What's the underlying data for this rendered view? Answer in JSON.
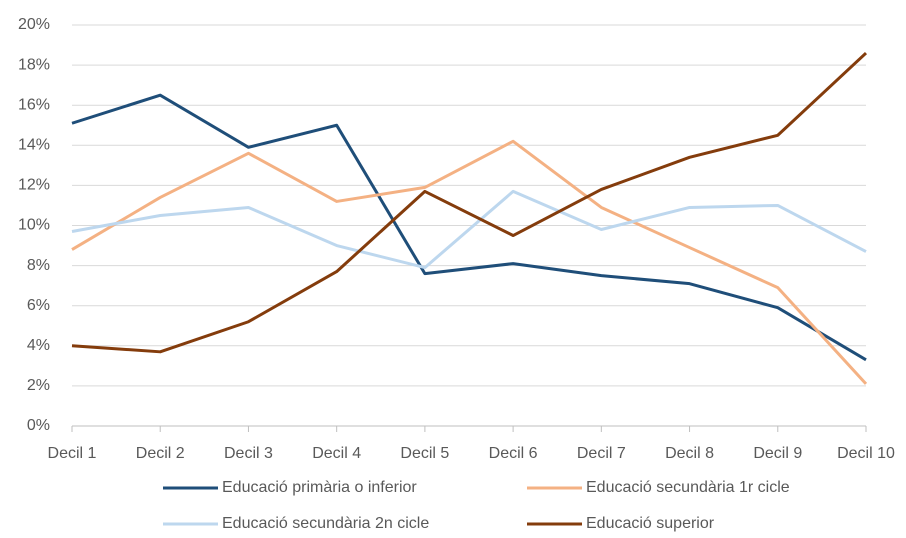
{
  "chart_data": {
    "type": "line",
    "categories": [
      "Decil 1",
      "Decil 2",
      "Decil 3",
      "Decil 4",
      "Decil 5",
      "Decil 6",
      "Decil 7",
      "Decil 8",
      "Decil 9",
      "Decil 10"
    ],
    "series": [
      {
        "name": "Educació primària o inferior",
        "color": "#1f4e79",
        "values": [
          15.1,
          16.5,
          13.9,
          15.0,
          7.6,
          8.1,
          7.5,
          7.1,
          5.9,
          3.3
        ]
      },
      {
        "name": "Educació secundària 1r cicle",
        "color": "#f4b183",
        "values": [
          8.8,
          11.4,
          13.6,
          11.2,
          11.9,
          14.2,
          10.9,
          8.9,
          6.9,
          2.1
        ]
      },
      {
        "name": "Educació secundària 2n cicle",
        "color": "#bdd7ee",
        "values": [
          9.7,
          10.5,
          10.9,
          9.0,
          7.9,
          11.7,
          9.8,
          10.9,
          11.0,
          8.7
        ]
      },
      {
        "name": "Educació superior",
        "color": "#843c0c",
        "values": [
          4.0,
          3.7,
          5.2,
          7.7,
          11.7,
          9.5,
          11.8,
          13.4,
          14.5,
          18.6
        ]
      }
    ],
    "ylim": [
      0,
      20
    ],
    "yticks": [
      {
        "value": 0,
        "label": "0%"
      },
      {
        "value": 2,
        "label": "2%"
      },
      {
        "value": 4,
        "label": "4%"
      },
      {
        "value": 6,
        "label": "6%"
      },
      {
        "value": 8,
        "label": "8%"
      },
      {
        "value": 10,
        "label": "10%"
      },
      {
        "value": 12,
        "label": "12%"
      },
      {
        "value": 14,
        "label": "14%"
      },
      {
        "value": 16,
        "label": "16%"
      },
      {
        "value": 18,
        "label": "18%"
      },
      {
        "value": 20,
        "label": "20%"
      }
    ],
    "grid": true
  }
}
